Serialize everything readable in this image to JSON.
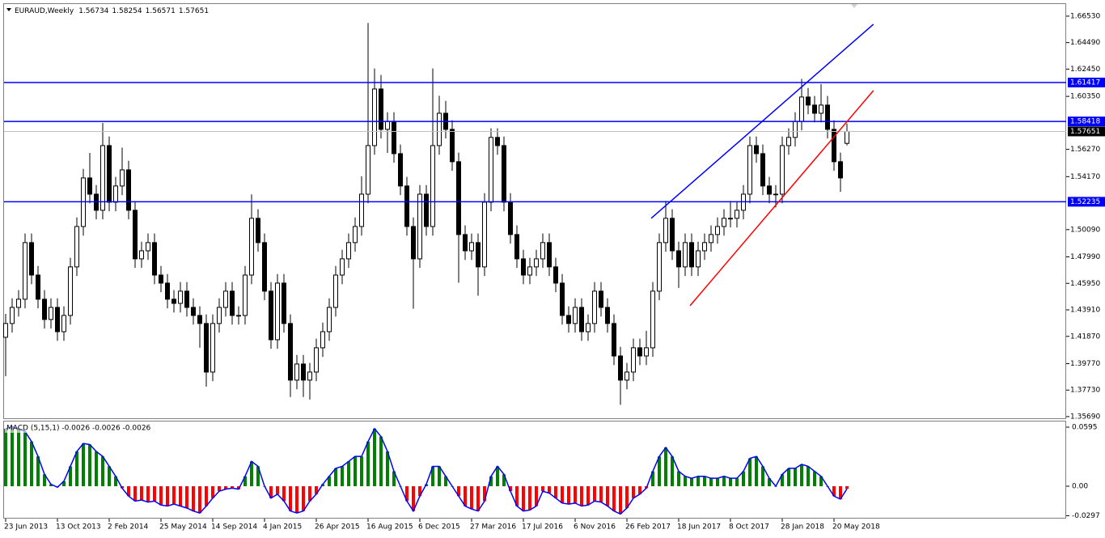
{
  "chart_data": {
    "type": "candlestick",
    "symbol": "EURAUD,Weekly",
    "ohlc": [
      1.56734,
      1.58254,
      1.56571,
      1.57651
    ],
    "categories": [
      "23 Jun 2013",
      null,
      null,
      null,
      null,
      null,
      null,
      null,
      "13 Oct 2013",
      null,
      null,
      null,
      null,
      null,
      null,
      null,
      "2 Feb 2014",
      null,
      null,
      null,
      null,
      null,
      null,
      null,
      "25 May 2014",
      null,
      null,
      null,
      null,
      null,
      null,
      null,
      "14 Sep 2014",
      null,
      null,
      null,
      null,
      null,
      null,
      null,
      "4 Jan 2015",
      null,
      null,
      null,
      null,
      null,
      null,
      null,
      "26 Apr 2015",
      null,
      null,
      null,
      null,
      null,
      null,
      null,
      "16 Aug 2015",
      null,
      null,
      null,
      null,
      null,
      null,
      null,
      "6 Dec 2015",
      null,
      null,
      null,
      null,
      null,
      null,
      null,
      "27 Mar 2016",
      null,
      null,
      null,
      null,
      null,
      null,
      null,
      "17 Jul 2016",
      null,
      null,
      null,
      null,
      null,
      null,
      null,
      "6 Nov 2016",
      null,
      null,
      null,
      null,
      null,
      null,
      null,
      "26 Feb 2017",
      null,
      null,
      null,
      null,
      null,
      null,
      null,
      "18 Jun 2017",
      null,
      null,
      null,
      null,
      null,
      null,
      null,
      "8 Oct 2017",
      null,
      null,
      null,
      null,
      null,
      null,
      null,
      "28 Jan 2018",
      null,
      null,
      null,
      null,
      null,
      null,
      null,
      "20 May 2018",
      null,
      null
    ],
    "candles": [
      [
        1.418,
        1.436,
        1.388,
        1.4286
      ],
      [
        1.4286,
        1.448,
        1.4216,
        1.441
      ],
      [
        1.441,
        1.4543,
        1.434,
        1.4473
      ],
      [
        1.4473,
        1.4979,
        1.4403,
        1.4909
      ],
      [
        1.4909,
        1.4979,
        1.4589,
        1.4659
      ],
      [
        1.4659,
        1.4729,
        1.4403,
        1.4473
      ],
      [
        1.4473,
        1.4543,
        1.4247,
        1.4317
      ],
      [
        1.4317,
        1.448,
        1.4247,
        1.441
      ],
      [
        1.441,
        1.448,
        1.4153,
        1.4223
      ],
      [
        1.4223,
        1.4418,
        1.4153,
        1.4348
      ],
      [
        1.4348,
        1.4792,
        1.4278,
        1.4722
      ],
      [
        1.4722,
        1.5103,
        1.4652,
        1.5033
      ],
      [
        1.5033,
        1.5477,
        1.4963,
        1.5407
      ],
      [
        1.5407,
        1.56,
        1.5212,
        1.5282
      ],
      [
        1.5282,
        1.5352,
        1.5088,
        1.5158
      ],
      [
        1.5158,
        1.583,
        1.5088,
        1.5656
      ],
      [
        1.5656,
        1.5726,
        1.515,
        1.522
      ],
      [
        1.522,
        1.5415,
        1.515,
        1.5345
      ],
      [
        1.5345,
        1.564,
        1.5275,
        1.5469
      ],
      [
        1.5469,
        1.5539,
        1.5088,
        1.5158
      ],
      [
        1.5158,
        1.5228,
        1.4714,
        1.4784
      ],
      [
        1.4784,
        1.4916,
        1.4714,
        1.4846
      ],
      [
        1.4846,
        1.4979,
        1.4776,
        1.4909
      ],
      [
        1.4909,
        1.4979,
        1.4589,
        1.4659
      ],
      [
        1.4659,
        1.4729,
        1.4527,
        1.4597
      ],
      [
        1.4597,
        1.4667,
        1.4403,
        1.4473
      ],
      [
        1.4473,
        1.4543,
        1.4371,
        1.4441
      ],
      [
        1.4441,
        1.4605,
        1.4371,
        1.4535
      ],
      [
        1.4535,
        1.4605,
        1.434,
        1.441
      ],
      [
        1.441,
        1.448,
        1.4278,
        1.4348
      ],
      [
        1.4348,
        1.4418,
        1.41,
        1.4286
      ],
      [
        1.4286,
        1.4356,
        1.38,
        1.3912
      ],
      [
        1.3912,
        1.4356,
        1.3842,
        1.4286
      ],
      [
        1.4286,
        1.448,
        1.4216,
        1.441
      ],
      [
        1.441,
        1.4605,
        1.434,
        1.4535
      ],
      [
        1.4535,
        1.4605,
        1.4278,
        1.4348
      ],
      [
        1.4348,
        1.4418,
        1.4278,
        1.4348
      ],
      [
        1.4348,
        1.4729,
        1.4278,
        1.4659
      ],
      [
        1.4659,
        1.528,
        1.4589,
        1.5096
      ],
      [
        1.5096,
        1.5166,
        1.4839,
        1.4909
      ],
      [
        1.4909,
        1.4979,
        1.4465,
        1.4535
      ],
      [
        1.4535,
        1.4605,
        1.4091,
        1.4161
      ],
      [
        1.4161,
        1.4667,
        1.4091,
        1.4597
      ],
      [
        1.4597,
        1.4667,
        1.4216,
        1.4286
      ],
      [
        1.4286,
        1.4356,
        1.372,
        1.385
      ],
      [
        1.385,
        1.4044,
        1.378,
        1.3974
      ],
      [
        1.3974,
        1.4044,
        1.372,
        1.385
      ],
      [
        1.385,
        1.3982,
        1.37,
        1.3912
      ],
      [
        1.3912,
        1.4169,
        1.3842,
        1.4099
      ],
      [
        1.4099,
        1.4293,
        1.4029,
        1.4223
      ],
      [
        1.4223,
        1.448,
        1.4153,
        1.441
      ],
      [
        1.441,
        1.4729,
        1.434,
        1.4659
      ],
      [
        1.4659,
        1.4854,
        1.4589,
        1.4784
      ],
      [
        1.4784,
        1.4979,
        1.4714,
        1.4909
      ],
      [
        1.4909,
        1.5103,
        1.4839,
        1.5033
      ],
      [
        1.5033,
        1.542,
        1.4963,
        1.5282
      ],
      [
        1.5282,
        1.66,
        1.5212,
        1.5656
      ],
      [
        1.5656,
        1.625,
        1.5586,
        1.6092
      ],
      [
        1.6092,
        1.62,
        1.5711,
        1.5781
      ],
      [
        1.5781,
        1.5913,
        1.56,
        1.5843
      ],
      [
        1.5843,
        1.5913,
        1.5524,
        1.5594
      ],
      [
        1.5594,
        1.5664,
        1.5275,
        1.5345
      ],
      [
        1.5345,
        1.5415,
        1.4963,
        1.5033
      ],
      [
        1.5033,
        1.5103,
        1.44,
        1.4784
      ],
      [
        1.4784,
        1.5352,
        1.4714,
        1.5282
      ],
      [
        1.5282,
        1.5352,
        1.4963,
        1.5033
      ],
      [
        1.5033,
        1.625,
        1.4963,
        1.5656
      ],
      [
        1.5656,
        1.604,
        1.5586,
        1.5905
      ],
      [
        1.5905,
        1.6,
        1.5711,
        1.5781
      ],
      [
        1.5781,
        1.5851,
        1.5462,
        1.5532
      ],
      [
        1.5532,
        1.5602,
        1.46,
        1.4971
      ],
      [
        1.4971,
        1.5041,
        1.4776,
        1.4846
      ],
      [
        1.4846,
        1.4979,
        1.4776,
        1.4909
      ],
      [
        1.4909,
        1.4979,
        1.45,
        1.4722
      ],
      [
        1.4722,
        1.529,
        1.4652,
        1.522
      ],
      [
        1.522,
        1.5789,
        1.515,
        1.5719
      ],
      [
        1.5719,
        1.5789,
        1.5586,
        1.5656
      ],
      [
        1.5656,
        1.5726,
        1.515,
        1.522
      ],
      [
        1.522,
        1.529,
        1.4901,
        1.4971
      ],
      [
        1.4971,
        1.5041,
        1.4714,
        1.4784
      ],
      [
        1.4784,
        1.4854,
        1.4589,
        1.4659
      ],
      [
        1.4659,
        1.4792,
        1.4589,
        1.4722
      ],
      [
        1.4722,
        1.4854,
        1.4652,
        1.4784
      ],
      [
        1.4784,
        1.4979,
        1.4714,
        1.4909
      ],
      [
        1.4909,
        1.4979,
        1.4652,
        1.4722
      ],
      [
        1.4722,
        1.4792,
        1.4527,
        1.4597
      ],
      [
        1.4597,
        1.4667,
        1.4278,
        1.4348
      ],
      [
        1.4348,
        1.4418,
        1.4216,
        1.4286
      ],
      [
        1.4286,
        1.448,
        1.4216,
        1.441
      ],
      [
        1.441,
        1.448,
        1.4153,
        1.4223
      ],
      [
        1.4223,
        1.4356,
        1.4153,
        1.4286
      ],
      [
        1.4286,
        1.4605,
        1.4216,
        1.4535
      ],
      [
        1.4535,
        1.4605,
        1.434,
        1.441
      ],
      [
        1.441,
        1.448,
        1.4216,
        1.4286
      ],
      [
        1.4286,
        1.4356,
        1.3966,
        1.4036
      ],
      [
        1.4036,
        1.4106,
        1.366,
        1.385
      ],
      [
        1.385,
        1.3982,
        1.378,
        1.3912
      ],
      [
        1.3912,
        1.4169,
        1.3842,
        1.4099
      ],
      [
        1.4099,
        1.4169,
        1.3966,
        1.4036
      ],
      [
        1.4036,
        1.423,
        1.3966,
        1.4099
      ],
      [
        1.4099,
        1.4605,
        1.4029,
        1.4535
      ],
      [
        1.4535,
        1.4979,
        1.4465,
        1.4909
      ],
      [
        1.4909,
        1.523,
        1.4839,
        1.5096
      ],
      [
        1.5096,
        1.5166,
        1.4776,
        1.4846
      ],
      [
        1.4846,
        1.4916,
        1.456,
        1.4722
      ],
      [
        1.4722,
        1.4979,
        1.4652,
        1.4909
      ],
      [
        1.4909,
        1.4979,
        1.4652,
        1.4722
      ],
      [
        1.4722,
        1.4916,
        1.4652,
        1.4846
      ],
      [
        1.4846,
        1.4979,
        1.4776,
        1.4909
      ],
      [
        1.4909,
        1.5041,
        1.4839,
        1.4971
      ],
      [
        1.4971,
        1.5103,
        1.4901,
        1.5033
      ],
      [
        1.5033,
        1.5166,
        1.4963,
        1.5096
      ],
      [
        1.5096,
        1.523,
        1.5026,
        1.5096
      ],
      [
        1.5096,
        1.5228,
        1.5026,
        1.5158
      ],
      [
        1.5158,
        1.5352,
        1.5088,
        1.5282
      ],
      [
        1.5282,
        1.5726,
        1.5212,
        1.5656
      ],
      [
        1.5656,
        1.5726,
        1.5524,
        1.5594
      ],
      [
        1.5594,
        1.5664,
        1.5275,
        1.5345
      ],
      [
        1.5345,
        1.5415,
        1.5212,
        1.5282
      ],
      [
        1.5282,
        1.5352,
        1.518,
        1.5282
      ],
      [
        1.5282,
        1.5726,
        1.5212,
        1.5656
      ],
      [
        1.5656,
        1.5789,
        1.5586,
        1.5719
      ],
      [
        1.5719,
        1.5913,
        1.5649,
        1.5843
      ],
      [
        1.5843,
        1.617,
        1.5773,
        1.603
      ],
      [
        1.603,
        1.61,
        1.5898,
        1.5968
      ],
      [
        1.5968,
        1.6038,
        1.5835,
        1.5905
      ],
      [
        1.5905,
        1.613,
        1.5835,
        1.5968
      ],
      [
        1.5968,
        1.6038,
        1.5711,
        1.5781
      ],
      [
        1.5781,
        1.5851,
        1.5462,
        1.5532
      ],
      [
        1.5532,
        1.5602,
        1.53,
        1.5407
      ],
      [
        1.56734,
        1.58254,
        1.56571,
        1.57651
      ]
    ],
    "ylim": [
      1.355,
      1.6746
    ],
    "yticks": [
      {
        "value": 1.6653,
        "label": "1.66530"
      },
      {
        "value": 1.6449,
        "label": "1.64490"
      },
      {
        "value": 1.6245,
        "label": "1.62450"
      },
      {
        "value": 1.6035,
        "label": "1.60350"
      },
      {
        "value": 1.5627,
        "label": "1.56270"
      },
      {
        "value": 1.5417,
        "label": "1.54170"
      },
      {
        "value": 1.5009,
        "label": "1.50090"
      },
      {
        "value": 1.4799,
        "label": "1.47990"
      },
      {
        "value": 1.4595,
        "label": "1.45950"
      },
      {
        "value": 1.4391,
        "label": "1.43910"
      },
      {
        "value": 1.4187,
        "label": "1.41870"
      },
      {
        "value": 1.3977,
        "label": "1.39770"
      },
      {
        "value": 1.3773,
        "label": "1.37730"
      },
      {
        "value": 1.3569,
        "label": "1.35690"
      }
    ],
    "levels": [
      {
        "value": 1.61417,
        "color": "#0000ff"
      },
      {
        "value": 1.58418,
        "color": "#0000ff"
      },
      {
        "value": 1.52235,
        "color": "#0000ff"
      }
    ],
    "last_price_color": "#c0c0c0",
    "trend_lines": [
      {
        "color": "#0000ff",
        "x": [
          99.75,
          134.1
        ],
        "y": [
          1.5096,
          1.6591
        ]
      },
      {
        "color": "#ff0000",
        "x": [
          105.75,
          134.1
        ],
        "y": [
          1.4423,
          1.608
        ]
      }
    ],
    "up_color": "#ffffff",
    "down_color": "#000000",
    "indicator": {
      "type": "macd",
      "label": "MACD (5,15,1) -0.0026 -0.0026 -0.0026",
      "values": [
        0.058,
        0.06,
        0.058,
        0.055,
        0.045,
        0.03,
        0.012,
        0.002,
        -0.001,
        0.005,
        0.02,
        0.035,
        0.043,
        0.042,
        0.035,
        0.03,
        0.02,
        0.01,
        -0.002,
        -0.01,
        -0.015,
        -0.014,
        -0.016,
        -0.015,
        -0.019,
        -0.02,
        -0.018,
        -0.02,
        -0.022,
        -0.025,
        -0.027,
        -0.02,
        -0.012,
        -0.005,
        -0.003,
        -0.002,
        -0.003,
        0.01,
        0.025,
        0.02,
        0.0,
        -0.012,
        -0.008,
        -0.015,
        -0.025,
        -0.027,
        -0.025,
        -0.015,
        -0.008,
        0.002,
        0.01,
        0.018,
        0.02,
        0.025,
        0.03,
        0.03,
        0.045,
        0.058,
        0.05,
        0.035,
        0.015,
        0.0,
        -0.015,
        -0.025,
        -0.01,
        0.002,
        0.02,
        0.02,
        0.01,
        0.0,
        -0.01,
        -0.02,
        -0.023,
        -0.025,
        -0.015,
        0.01,
        0.02,
        0.012,
        -0.005,
        -0.02,
        -0.025,
        -0.024,
        -0.02,
        -0.005,
        -0.007,
        -0.012,
        -0.017,
        -0.018,
        -0.017,
        -0.02,
        -0.019,
        -0.015,
        -0.016,
        -0.02,
        -0.025,
        -0.028,
        -0.022,
        -0.012,
        -0.008,
        -0.002,
        0.015,
        0.03,
        0.039,
        0.03,
        0.015,
        0.01,
        0.008,
        0.01,
        0.01,
        0.008,
        0.008,
        0.01,
        0.008,
        0.008,
        0.015,
        0.028,
        0.03,
        0.02,
        0.008,
        0.0,
        0.012,
        0.018,
        0.018,
        0.022,
        0.02,
        0.015,
        0.01,
        0.0,
        -0.01,
        -0.013,
        -0.0026
      ],
      "ylim": [
        -0.0318,
        0.0652
      ],
      "yticks": [
        0.0595,
        {
          "value": 0,
          "label": "0.00"
        },
        -0.0297
      ],
      "positive_color": "#008000",
      "negative_color": "#ff0000",
      "line_color": "#0000ff"
    }
  }
}
